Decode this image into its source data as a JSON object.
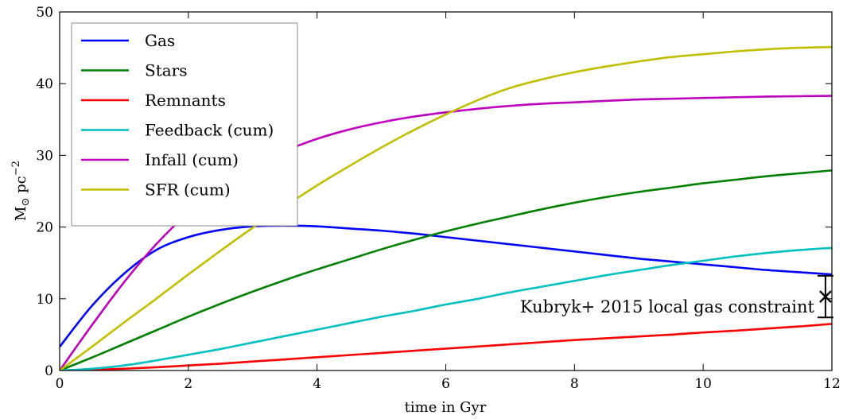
{
  "chart_data": {
    "type": "line",
    "title": "",
    "xlabel": "time in Gyr",
    "ylabel": "M",
    "ylabel_sub": "⊙",
    "ylabel_unit": "pc",
    "ylabel_exp": "−2",
    "xlim": [
      0,
      12
    ],
    "ylim": [
      0,
      50
    ],
    "xticks": [
      0,
      2,
      4,
      6,
      8,
      10,
      12
    ],
    "yticks": [
      0,
      10,
      20,
      30,
      40,
      50
    ],
    "grid": false,
    "legend_position": "top-left",
    "x": [
      0,
      0.5,
      1,
      1.5,
      2,
      2.5,
      3,
      3.5,
      4,
      4.5,
      5,
      5.5,
      6,
      6.5,
      7,
      7.5,
      8,
      8.5,
      9,
      9.5,
      10,
      10.5,
      11,
      11.5,
      12
    ],
    "series": [
      {
        "name": "Gas",
        "color": "#0000ff",
        "values": [
          3.3,
          9.0,
          13.5,
          16.8,
          18.6,
          19.6,
          20.1,
          20.2,
          20.1,
          19.8,
          19.5,
          19.1,
          18.6,
          18.1,
          17.6,
          17.1,
          16.6,
          16.1,
          15.6,
          15.2,
          14.8,
          14.4,
          14.0,
          13.7,
          13.4
        ]
      },
      {
        "name": "Stars",
        "color": "#008000",
        "values": [
          0,
          1.8,
          3.7,
          5.6,
          7.5,
          9.3,
          11.0,
          12.6,
          14.1,
          15.5,
          16.9,
          18.2,
          19.4,
          20.5,
          21.5,
          22.5,
          23.4,
          24.2,
          24.9,
          25.5,
          26.1,
          26.6,
          27.1,
          27.5,
          27.9
        ]
      },
      {
        "name": "Remnants",
        "color": "#ff0000",
        "values": [
          0,
          0.1,
          0.25,
          0.45,
          0.7,
          0.95,
          1.25,
          1.55,
          1.85,
          2.15,
          2.45,
          2.75,
          3.05,
          3.35,
          3.65,
          3.95,
          4.25,
          4.5,
          4.75,
          5.0,
          5.3,
          5.55,
          5.85,
          6.15,
          6.5
        ]
      },
      {
        "name": "Feedback (cum)",
        "color": "#00bfbf",
        "values": [
          0,
          0.25,
          0.7,
          1.4,
          2.2,
          3.0,
          3.9,
          4.8,
          5.7,
          6.6,
          7.5,
          8.3,
          9.2,
          10.0,
          10.9,
          11.7,
          12.5,
          13.3,
          14.0,
          14.7,
          15.3,
          15.9,
          16.4,
          16.8,
          17.1
        ]
      },
      {
        "name": "Infall (cum)",
        "color": "#bf00bf",
        "values": [
          0,
          6.3,
          12.3,
          17.6,
          22.0,
          25.6,
          28.4,
          30.6,
          32.3,
          33.6,
          34.6,
          35.4,
          36.0,
          36.5,
          36.9,
          37.2,
          37.4,
          37.6,
          37.8,
          37.9,
          38.0,
          38.1,
          38.2,
          38.25,
          38.3
        ]
      },
      {
        "name": "SFR (cum)",
        "color": "#bfbf00",
        "values": [
          0,
          3.3,
          6.7,
          10.0,
          13.4,
          16.7,
          19.9,
          22.9,
          25.8,
          28.5,
          31.1,
          33.5,
          35.7,
          37.7,
          39.4,
          40.6,
          41.6,
          42.4,
          43.1,
          43.7,
          44.1,
          44.5,
          44.8,
          45.0,
          45.1
        ]
      }
    ],
    "annotation": {
      "text": "Kubryk+ 2015 local gas constraint",
      "x": 11.9,
      "y": 10.3,
      "y_err": [
        7.4,
        13.2
      ],
      "marker": "x"
    }
  }
}
